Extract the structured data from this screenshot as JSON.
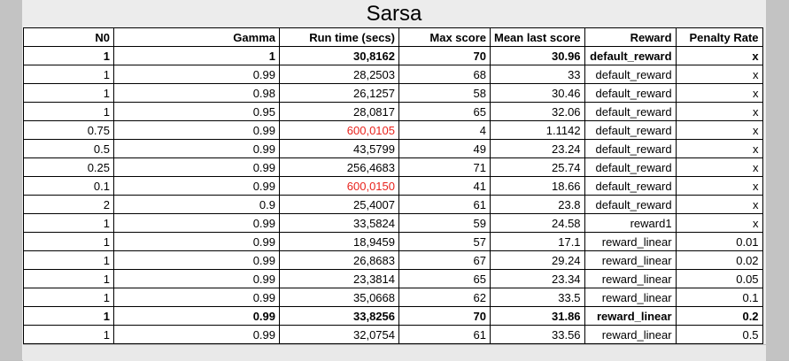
{
  "title": "Sarsa",
  "columns": [
    "N0",
    "Gamma",
    "Run time (secs)",
    "Max score",
    "Mean last score",
    "Reward",
    "Penalty Rate"
  ],
  "highlight_color": "#e8221c",
  "rows": [
    {
      "n0": "1",
      "gamma": "1",
      "runtime": "30,8162",
      "max": "70",
      "mean": "30.96",
      "reward": "default_reward",
      "penalty": "x",
      "bold": true,
      "red": false
    },
    {
      "n0": "1",
      "gamma": "0.99",
      "runtime": "28,2503",
      "max": "68",
      "mean": "33",
      "reward": "default_reward",
      "penalty": "x",
      "bold": false,
      "red": false
    },
    {
      "n0": "1",
      "gamma": "0.98",
      "runtime": "26,1257",
      "max": "58",
      "mean": "30.46",
      "reward": "default_reward",
      "penalty": "x",
      "bold": false,
      "red": false
    },
    {
      "n0": "1",
      "gamma": "0.95",
      "runtime": "28,0817",
      "max": "65",
      "mean": "32.06",
      "reward": "default_reward",
      "penalty": "x",
      "bold": false,
      "red": false
    },
    {
      "n0": "0.75",
      "gamma": "0.99",
      "runtime": "600,0105",
      "max": "4",
      "mean": "1.1142",
      "reward": "default_reward",
      "penalty": "x",
      "bold": false,
      "red": true
    },
    {
      "n0": "0.5",
      "gamma": "0.99",
      "runtime": "43,5799",
      "max": "49",
      "mean": "23.24",
      "reward": "default_reward",
      "penalty": "x",
      "bold": false,
      "red": false
    },
    {
      "n0": "0.25",
      "gamma": "0.99",
      "runtime": "256,4683",
      "max": "71",
      "mean": "25.74",
      "reward": "default_reward",
      "penalty": "x",
      "bold": false,
      "red": false
    },
    {
      "n0": "0.1",
      "gamma": "0.99",
      "runtime": "600,0150",
      "max": "41",
      "mean": "18.66",
      "reward": "default_reward",
      "penalty": "x",
      "bold": false,
      "red": true
    },
    {
      "n0": "2",
      "gamma": "0.9",
      "runtime": "25,4007",
      "max": "61",
      "mean": "23.8",
      "reward": "default_reward",
      "penalty": "x",
      "bold": false,
      "red": false
    },
    {
      "n0": "1",
      "gamma": "0.99",
      "runtime": "33,5824",
      "max": "59",
      "mean": "24.58",
      "reward": "reward1",
      "penalty": "x",
      "bold": false,
      "red": false
    },
    {
      "n0": "1",
      "gamma": "0.99",
      "runtime": "18,9459",
      "max": "57",
      "mean": "17.1",
      "reward": "reward_linear",
      "penalty": "0.01",
      "bold": false,
      "red": false
    },
    {
      "n0": "1",
      "gamma": "0.99",
      "runtime": "26,8683",
      "max": "67",
      "mean": "29.24",
      "reward": "reward_linear",
      "penalty": "0.02",
      "bold": false,
      "red": false
    },
    {
      "n0": "1",
      "gamma": "0.99",
      "runtime": "23,3814",
      "max": "65",
      "mean": "23.34",
      "reward": "reward_linear",
      "penalty": "0.05",
      "bold": false,
      "red": false
    },
    {
      "n0": "1",
      "gamma": "0.99",
      "runtime": "35,0668",
      "max": "62",
      "mean": "33.5",
      "reward": "reward_linear",
      "penalty": "0.1",
      "bold": false,
      "red": false
    },
    {
      "n0": "1",
      "gamma": "0.99",
      "runtime": "33,8256",
      "max": "70",
      "mean": "31.86",
      "reward": "reward_linear",
      "penalty": "0.2",
      "bold": true,
      "red": false
    },
    {
      "n0": "1",
      "gamma": "0.99",
      "runtime": "32,0754",
      "max": "61",
      "mean": "33.56",
      "reward": "reward_linear",
      "penalty": "0.5",
      "bold": false,
      "red": false
    }
  ]
}
